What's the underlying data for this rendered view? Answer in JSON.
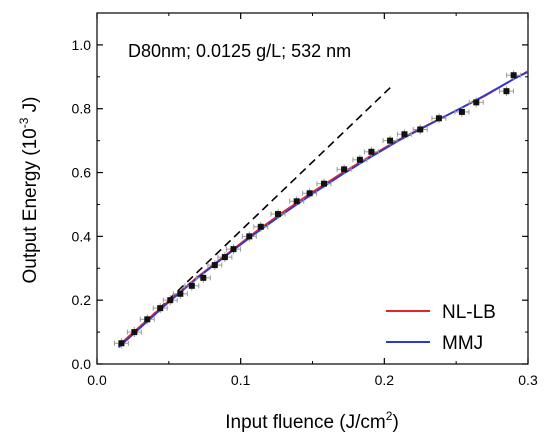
{
  "chart_data": {
    "type": "scatter",
    "annotation": "D80nm; 0.0125 g/L; 532 nm",
    "xlabel": {
      "prefix": "Input fluence (J/cm",
      "sup": "2",
      "suffix": ")"
    },
    "ylabel": {
      "prefix": "Output Energy (10",
      "sup": "-3",
      "suffix": " J)"
    },
    "xlim": [
      0.0,
      0.3
    ],
    "ylim": [
      0.0,
      1.1
    ],
    "x_ticks": [
      {
        "value": 0.0,
        "label": "0.0"
      },
      {
        "value": 0.1,
        "label": "0.1"
      },
      {
        "value": 0.2,
        "label": "0.2"
      },
      {
        "value": 0.3,
        "label": "0.3"
      }
    ],
    "y_ticks": [
      {
        "value": 0.0,
        "label": "0.0"
      },
      {
        "value": 0.2,
        "label": "0.2"
      },
      {
        "value": 0.4,
        "label": "0.4"
      },
      {
        "value": 0.6,
        "label": "0.6"
      },
      {
        "value": 0.8,
        "label": "0.8"
      },
      {
        "value": 1.0,
        "label": "1.0"
      }
    ],
    "legend_position": "bottom-right",
    "points": [
      {
        "x": 0.017,
        "y": 0.065
      },
      {
        "x": 0.026,
        "y": 0.1
      },
      {
        "x": 0.035,
        "y": 0.14
      },
      {
        "x": 0.044,
        "y": 0.175
      },
      {
        "x": 0.051,
        "y": 0.2
      },
      {
        "x": 0.058,
        "y": 0.22
      },
      {
        "x": 0.066,
        "y": 0.245
      },
      {
        "x": 0.074,
        "y": 0.27
      },
      {
        "x": 0.082,
        "y": 0.31
      },
      {
        "x": 0.089,
        "y": 0.335
      },
      {
        "x": 0.095,
        "y": 0.36
      },
      {
        "x": 0.106,
        "y": 0.4
      },
      {
        "x": 0.114,
        "y": 0.43
      },
      {
        "x": 0.126,
        "y": 0.47
      },
      {
        "x": 0.139,
        "y": 0.51
      },
      {
        "x": 0.148,
        "y": 0.535
      },
      {
        "x": 0.158,
        "y": 0.565
      },
      {
        "x": 0.172,
        "y": 0.61
      },
      {
        "x": 0.183,
        "y": 0.64
      },
      {
        "x": 0.191,
        "y": 0.665
      },
      {
        "x": 0.204,
        "y": 0.7
      },
      {
        "x": 0.214,
        "y": 0.72
      },
      {
        "x": 0.225,
        "y": 0.735
      },
      {
        "x": 0.238,
        "y": 0.77
      },
      {
        "x": 0.254,
        "y": 0.79
      },
      {
        "x": 0.264,
        "y": 0.82
      },
      {
        "x": 0.285,
        "y": 0.855
      },
      {
        "x": 0.29,
        "y": 0.905
      }
    ],
    "linear_reference": {
      "x": [
        0.017,
        0.205
      ],
      "y": [
        0.06,
        0.87
      ]
    },
    "series": [
      {
        "name": "NL-LB",
        "color": "#e8242b",
        "x": [
          0.015,
          0.03,
          0.05,
          0.07,
          0.09,
          0.11,
          0.13,
          0.15,
          0.17,
          0.19,
          0.21,
          0.23,
          0.25,
          0.27,
          0.29,
          0.3
        ],
        "y": [
          0.058,
          0.118,
          0.198,
          0.273,
          0.343,
          0.413,
          0.478,
          0.539,
          0.597,
          0.651,
          0.703,
          0.749,
          0.794,
          0.84,
          0.893,
          0.918
        ]
      },
      {
        "name": "MMJ",
        "color": "#2a3ad1",
        "x": [
          0.015,
          0.03,
          0.05,
          0.07,
          0.09,
          0.11,
          0.13,
          0.15,
          0.17,
          0.19,
          0.21,
          0.23,
          0.25,
          0.27,
          0.29,
          0.3
        ],
        "y": [
          0.052,
          0.113,
          0.194,
          0.27,
          0.34,
          0.408,
          0.472,
          0.533,
          0.592,
          0.647,
          0.7,
          0.747,
          0.794,
          0.842,
          0.893,
          0.915
        ]
      }
    ]
  }
}
